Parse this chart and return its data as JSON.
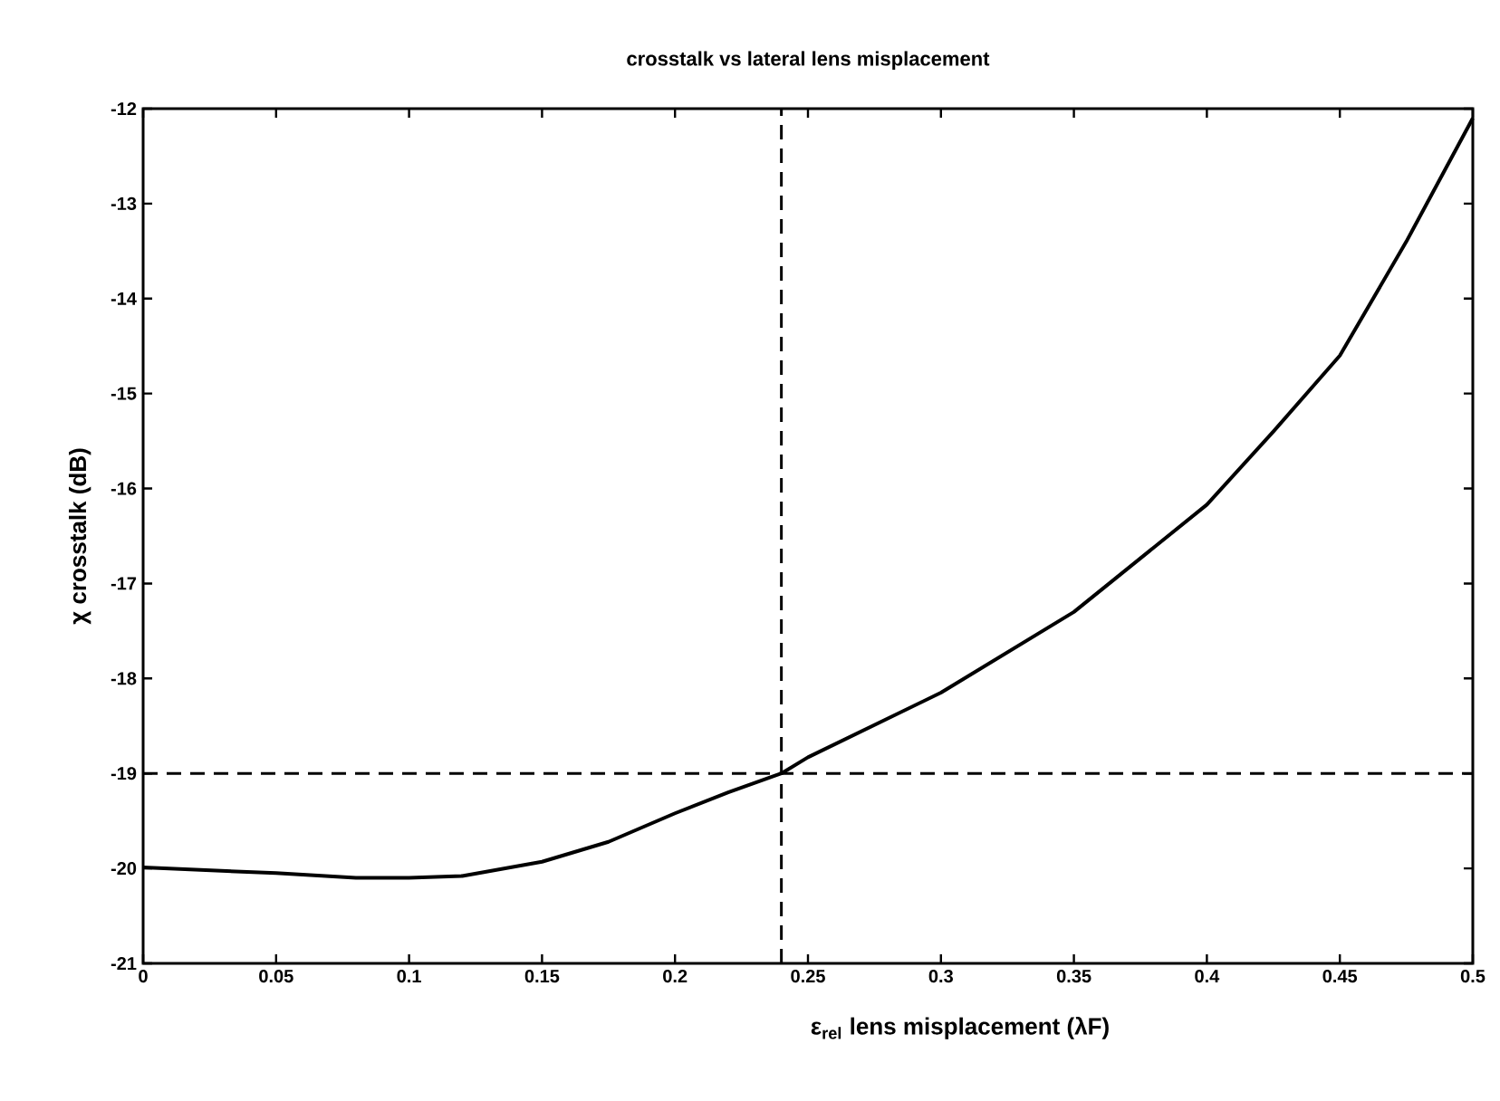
{
  "chart_data": {
    "type": "line",
    "title": "crosstalk vs lateral lens misplacement",
    "xlabel": "ε$_{rel}$   lens misplacement (λF)",
    "ylabel": "χ   crosstalk (dB)",
    "x": [
      0,
      0.05,
      0.08,
      0.1,
      0.12,
      0.15,
      0.175,
      0.2,
      0.22,
      0.24,
      0.25,
      0.3,
      0.35,
      0.4,
      0.425,
      0.45,
      0.475,
      0.5
    ],
    "series": [
      {
        "color": "#000000",
        "values": [
          -19.99,
          -20.05,
          -20.1,
          -20.1,
          -20.08,
          -19.93,
          -19.72,
          -19.42,
          -19.2,
          -19.0,
          -18.83,
          -18.15,
          -17.3,
          -16.17,
          -15.4,
          -14.6,
          -13.4,
          -12.1
        ]
      }
    ],
    "xlim": [
      0,
      0.5
    ],
    "ylim": [
      -21,
      -12
    ],
    "xticks": [
      0,
      0.05,
      0.1,
      0.15,
      0.2,
      0.25,
      0.3,
      0.35,
      0.4,
      0.45,
      0.5
    ],
    "yticks": [
      -21,
      -20,
      -19,
      -18,
      -17,
      -16,
      -15,
      -14,
      -13,
      -12
    ],
    "ref_lines": [
      {
        "axis": "x",
        "value": 0.24,
        "color": "#000000",
        "line_style": "dashed"
      },
      {
        "axis": "y",
        "value": -19,
        "color": "#000000",
        "line_style": "dashed"
      }
    ],
    "grid": false,
    "marker": "none",
    "line_style": "solid"
  }
}
